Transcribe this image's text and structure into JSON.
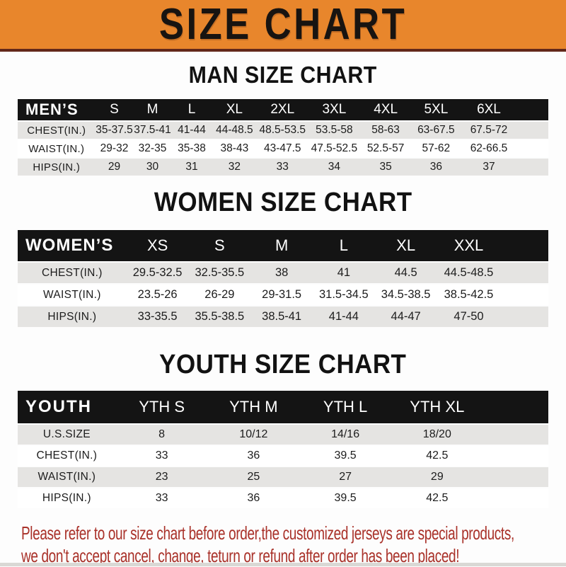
{
  "banner": {
    "title": "SIZE CHART"
  },
  "colors": {
    "banner_orange": "#E8862C",
    "banner_underline": "#62281A",
    "header_bar_black": "#141414",
    "row_shaded_gray": "#E5E4E2",
    "footer_red": "#A93129",
    "text_black": "#1C1C1C"
  },
  "sections": [
    {
      "id": "men",
      "heading": "MAN SIZE CHART",
      "table": {
        "header_label": "MEN’S",
        "columns": [
          "S",
          "M",
          "L",
          "XL",
          "2XL",
          "3XL",
          "4XL",
          "5XL",
          "6XL"
        ],
        "rows": [
          {
            "label": "CHEST(IN.)",
            "values": [
              "35-37.5",
              "37.5-41",
              "41-44",
              "44-48.5",
              "48.5-53.5",
              "53.5-58",
              "58-63",
              "63-67.5",
              "67.5-72"
            ]
          },
          {
            "label": "WAIST(IN.)",
            "values": [
              "29-32",
              "32-35",
              "35-38",
              "38-43",
              "43-47.5",
              "47.5-52.5",
              "52.5-57",
              "57-62",
              "62-66.5"
            ]
          },
          {
            "label": "HIPS(IN.)",
            "values": [
              "29",
              "30",
              "31",
              "32",
              "33",
              "34",
              "35",
              "36",
              "37"
            ]
          }
        ]
      }
    },
    {
      "id": "women",
      "heading": "WOMEN SIZE CHART",
      "table": {
        "header_label": "WOMEN’S",
        "columns": [
          "XS",
          "S",
          "M",
          "L",
          "XL",
          "XXL"
        ],
        "rows": [
          {
            "label": "CHEST(IN.)",
            "values": [
              "29.5-32.5",
              "32.5-35.5",
              "38",
              "41",
              "44.5",
              "44.5-48.5"
            ]
          },
          {
            "label": "WAIST(IN.)",
            "values": [
              "23.5-26",
              "26-29",
              "29-31.5",
              "31.5-34.5",
              "34.5-38.5",
              "38.5-42.5"
            ]
          },
          {
            "label": "HIPS(IN.)",
            "values": [
              "33-35.5",
              "35.5-38.5",
              "38.5-41",
              "41-44",
              "44-47",
              "47-50"
            ]
          }
        ]
      }
    },
    {
      "id": "youth",
      "heading": "YOUTH SIZE CHART",
      "table": {
        "header_label": "YOUTH",
        "columns": [
          "YTH S",
          "YTH M",
          "YTH L",
          "YTH XL"
        ],
        "rows": [
          {
            "label": "U.S.SIZE",
            "values": [
              "8",
              "10/12",
              "14/16",
              "18/20"
            ]
          },
          {
            "label": "CHEST(IN.)",
            "values": [
              "33",
              "36",
              "39.5",
              "42.5"
            ]
          },
          {
            "label": "WAIST(IN.)",
            "values": [
              "23",
              "25",
              "27",
              "29"
            ]
          },
          {
            "label": "HIPS(IN.)",
            "values": [
              "33",
              "36",
              "39.5",
              "42.5"
            ]
          }
        ]
      }
    }
  ],
  "footer": {
    "line1": "Please refer to our size chart before order,the customized jerseys are special products,",
    "line2": "we don't accept cancel, change, teturn or refund after order has been placed!"
  }
}
